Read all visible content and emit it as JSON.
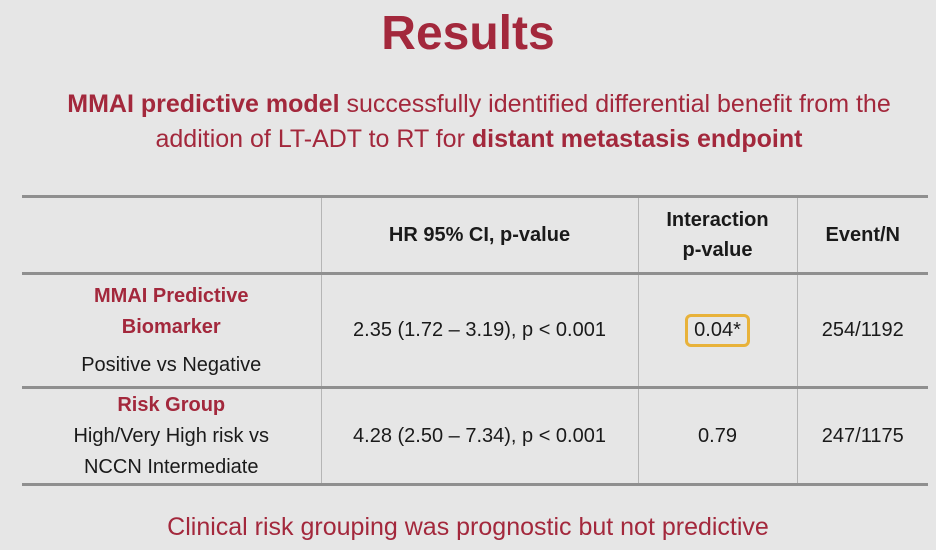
{
  "slide": {
    "title": "Results",
    "subtitle": {
      "part1": "MMAI predictive model",
      "part2": " successfully identified differential benefit from the addition of LT-ADT to RT for ",
      "part3": "distant metastasis endpoint"
    },
    "footer": "Clinical risk grouping was prognostic but not predictive"
  },
  "table": {
    "headers": [
      "",
      "HR 95% CI, p-value",
      "Interaction p-value",
      "Event/N"
    ],
    "header_lines": {
      "interaction_line1": "Interaction",
      "interaction_line2": "p-value"
    },
    "rows": [
      {
        "label_line1": "MMAI Predictive",
        "label_line2": "Biomarker",
        "sub_line1": "Positive vs Negative",
        "hr": "2.35 (1.72 – 3.19), p < 0.001",
        "interaction": "0.04*",
        "event_n": "254/1192"
      },
      {
        "label_line1": "Risk Group",
        "sub_line1": "High/Very High risk vs",
        "sub_line2": "NCCN Intermediate",
        "hr": "4.28 (2.50 – 7.34), p < 0.001",
        "interaction": "0.79",
        "event_n": "247/1175"
      }
    ]
  },
  "colors": {
    "accent": "#a3283c",
    "highlight_border": "#e8b23a",
    "background": "#e6e6e6"
  }
}
